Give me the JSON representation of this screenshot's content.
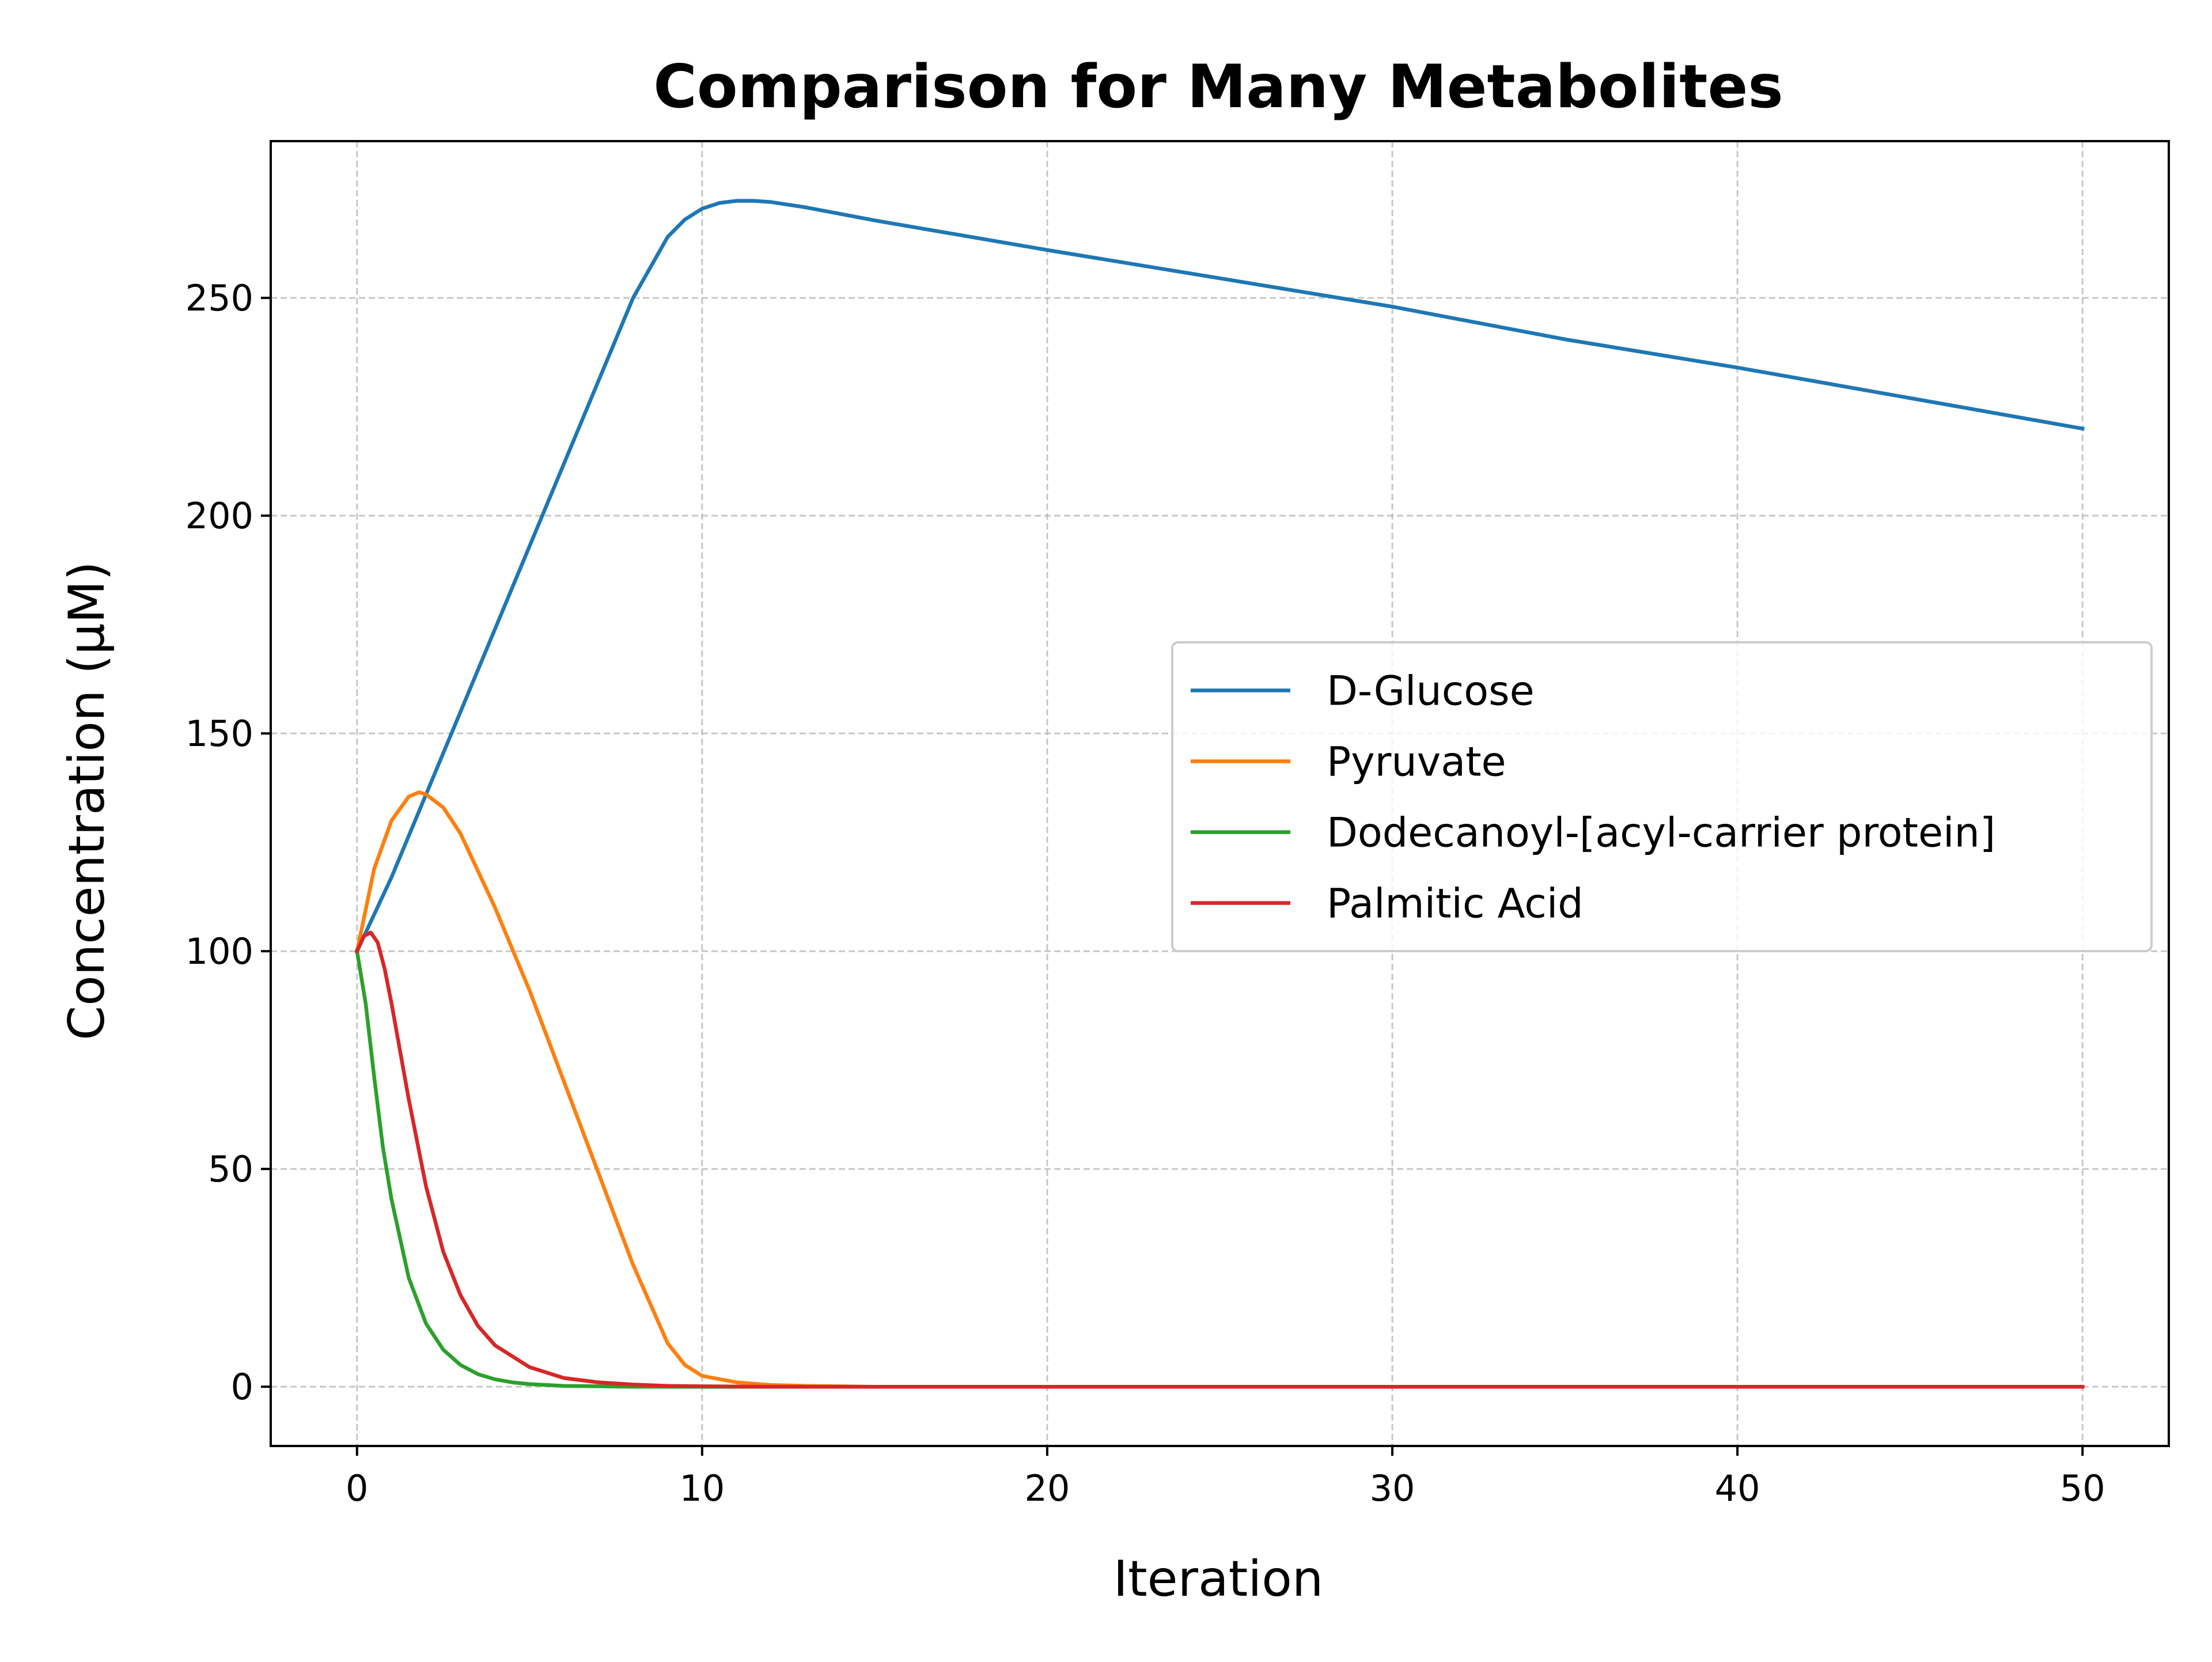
{
  "chart_data": {
    "type": "line",
    "title": "Comparison for Many Metabolites",
    "xlabel": "Iteration",
    "ylabel": "Concentration (μM)",
    "xlim": [
      -2.5,
      52.5
    ],
    "ylim": [
      -13.6,
      286
    ],
    "xticks": [
      0,
      10,
      20,
      30,
      40,
      50
    ],
    "yticks": [
      0,
      50,
      100,
      150,
      200,
      250
    ],
    "grid": true,
    "legend_position": "center-right",
    "series": [
      {
        "name": "D-Glucose",
        "color": "#1f77b4",
        "x": [
          0,
          1,
          2,
          3,
          4,
          5,
          6,
          7,
          8,
          9,
          9.5,
          10,
          10.5,
          11,
          11.5,
          12,
          13,
          15,
          20,
          25,
          30,
          35,
          40,
          45,
          50
        ],
        "y": [
          100,
          117,
          136,
          155,
          174,
          193,
          212,
          231,
          250,
          264,
          268,
          270.5,
          271.8,
          272.3,
          272.3,
          272,
          270.8,
          267.8,
          261,
          254.5,
          248,
          240.5,
          234,
          227,
          220
        ]
      },
      {
        "name": "Pyruvate",
        "color": "#ff7f0e",
        "x": [
          0,
          0.5,
          1,
          1.5,
          1.8,
          2,
          2.5,
          3,
          4,
          5,
          6,
          7,
          8,
          9,
          9.5,
          10,
          11,
          12,
          13,
          14,
          15,
          20,
          30,
          40,
          50
        ],
        "y": [
          100,
          119,
          130,
          135.5,
          136.5,
          136,
          133,
          127,
          110,
          91,
          70,
          49,
          28,
          10,
          5,
          2.5,
          1,
          0.4,
          0.2,
          0.1,
          0,
          0,
          0,
          0,
          0
        ]
      },
      {
        "name": "Dodecanoyl-[acyl-carrier protein]",
        "color": "#2ca02c",
        "x": [
          0,
          0.25,
          0.5,
          0.75,
          1,
          1.5,
          2,
          2.5,
          3,
          3.5,
          4,
          4.5,
          5,
          6,
          7,
          8,
          10,
          15,
          20,
          30,
          40,
          50
        ],
        "y": [
          100,
          88,
          71,
          55,
          43,
          25,
          14.5,
          8.5,
          5,
          2.9,
          1.7,
          1,
          0.6,
          0.2,
          0.1,
          0,
          0,
          0,
          0,
          0,
          0,
          0
        ]
      },
      {
        "name": "Palmitic Acid",
        "color": "#d62728",
        "x": [
          0,
          0.2,
          0.4,
          0.6,
          0.8,
          1,
          1.5,
          2,
          2.5,
          3,
          3.5,
          4,
          5,
          6,
          7,
          8,
          9,
          10,
          12,
          15,
          20,
          30,
          40,
          50
        ],
        "y": [
          100,
          103.5,
          104.3,
          102,
          96,
          88,
          66,
          46,
          31,
          21,
          14,
          9.5,
          4.5,
          2,
          1,
          0.5,
          0.2,
          0.1,
          0,
          0,
          0,
          0,
          0,
          0
        ]
      }
    ]
  }
}
